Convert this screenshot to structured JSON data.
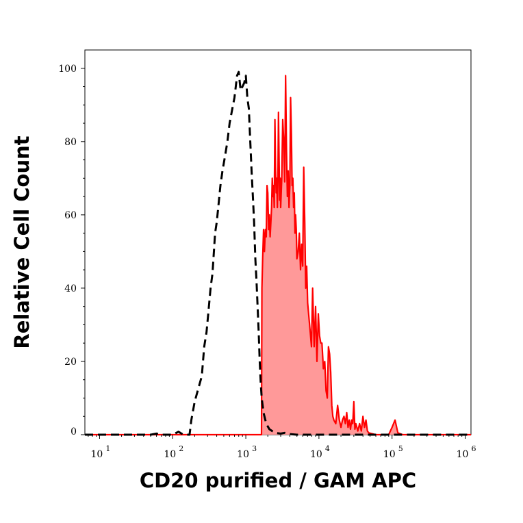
{
  "chart_data": {
    "type": "area",
    "xlabel": "CD20 purified / GAM APC",
    "ylabel": "Relative Cell Count",
    "x_scale": "log",
    "xlim": [
      6.3,
      1200000
    ],
    "ylim": [
      0,
      105
    ],
    "x_ticks": [
      {
        "value": 10,
        "base": "10",
        "exp": "1"
      },
      {
        "value": 100,
        "base": "10",
        "exp": "2"
      },
      {
        "value": 1000,
        "base": "10",
        "exp": "3"
      },
      {
        "value": 10000,
        "base": "10",
        "exp": "4"
      },
      {
        "value": 100000,
        "base": "10",
        "exp": "5"
      },
      {
        "value": 1000000,
        "base": "10",
        "exp": "6"
      }
    ],
    "y_ticks": [
      0,
      20,
      40,
      60,
      80,
      100
    ],
    "grid": false,
    "legend": "none",
    "series": [
      {
        "style": "dashed-line",
        "color": "#000000",
        "points": [
          [
            6.3,
            0
          ],
          [
            50,
            0
          ],
          [
            60,
            0.3
          ],
          [
            70,
            0
          ],
          [
            100,
            0
          ],
          [
            120,
            0.8
          ],
          [
            140,
            0
          ],
          [
            170,
            0
          ],
          [
            180,
            4
          ],
          [
            200,
            9
          ],
          [
            220,
            12
          ],
          [
            250,
            16
          ],
          [
            270,
            24
          ],
          [
            290,
            28
          ],
          [
            310,
            34
          ],
          [
            330,
            40
          ],
          [
            350,
            44
          ],
          [
            380,
            55
          ],
          [
            400,
            58
          ],
          [
            420,
            62
          ],
          [
            450,
            68
          ],
          [
            480,
            72
          ],
          [
            520,
            76
          ],
          [
            560,
            80
          ],
          [
            600,
            85
          ],
          [
            640,
            88
          ],
          [
            700,
            92
          ],
          [
            760,
            98
          ],
          [
            800,
            99
          ],
          [
            850,
            94
          ],
          [
            900,
            95
          ],
          [
            950,
            96
          ],
          [
            1000,
            98
          ],
          [
            1050,
            92
          ],
          [
            1100,
            89
          ],
          [
            1150,
            80
          ],
          [
            1200,
            72
          ],
          [
            1250,
            65
          ],
          [
            1300,
            58
          ],
          [
            1350,
            48
          ],
          [
            1400,
            42
          ],
          [
            1450,
            35
          ],
          [
            1500,
            28
          ],
          [
            1550,
            20
          ],
          [
            1600,
            14
          ],
          [
            1650,
            10
          ],
          [
            1750,
            6
          ],
          [
            1900,
            3
          ],
          [
            2100,
            1.5
          ],
          [
            2500,
            0.5
          ],
          [
            3000,
            0.3
          ],
          [
            3400,
            0.5
          ],
          [
            3800,
            0.2
          ],
          [
            5000,
            0
          ],
          [
            1200000,
            0
          ]
        ]
      },
      {
        "style": "filled-area",
        "color": "#ff0000",
        "fill": "#ff9999",
        "points": [
          [
            6.3,
            0
          ],
          [
            1640,
            0
          ],
          [
            1660,
            40
          ],
          [
            1700,
            48
          ],
          [
            1750,
            56
          ],
          [
            1800,
            50
          ],
          [
            1850,
            56
          ],
          [
            1900,
            54
          ],
          [
            1950,
            68
          ],
          [
            2000,
            66
          ],
          [
            2050,
            56
          ],
          [
            2100,
            60
          ],
          [
            2150,
            54
          ],
          [
            2200,
            58
          ],
          [
            2250,
            62
          ],
          [
            2300,
            70
          ],
          [
            2350,
            65
          ],
          [
            2400,
            68
          ],
          [
            2450,
            62
          ],
          [
            2500,
            86
          ],
          [
            2550,
            73
          ],
          [
            2600,
            66
          ],
          [
            2650,
            70
          ],
          [
            2700,
            62
          ],
          [
            2750,
            70
          ],
          [
            2800,
            88
          ],
          [
            2850,
            75
          ],
          [
            2900,
            64
          ],
          [
            2950,
            70
          ],
          [
            3000,
            62
          ],
          [
            3100,
            70
          ],
          [
            3200,
            86
          ],
          [
            3300,
            80
          ],
          [
            3400,
            69
          ],
          [
            3500,
            98
          ],
          [
            3600,
            78
          ],
          [
            3700,
            65
          ],
          [
            3800,
            72
          ],
          [
            3900,
            62
          ],
          [
            4000,
            68
          ],
          [
            4100,
            92
          ],
          [
            4200,
            82
          ],
          [
            4300,
            68
          ],
          [
            4400,
            70
          ],
          [
            4500,
            62
          ],
          [
            4600,
            66
          ],
          [
            4700,
            55
          ],
          [
            4800,
            60
          ],
          [
            4900,
            56
          ],
          [
            5000,
            48
          ],
          [
            5200,
            50
          ],
          [
            5400,
            55
          ],
          [
            5600,
            45
          ],
          [
            5800,
            52
          ],
          [
            6000,
            46
          ],
          [
            6200,
            73
          ],
          [
            6400,
            58
          ],
          [
            6600,
            40
          ],
          [
            6800,
            46
          ],
          [
            7000,
            36
          ],
          [
            7300,
            32
          ],
          [
            7600,
            28
          ],
          [
            7900,
            24
          ],
          [
            8200,
            40
          ],
          [
            8600,
            24
          ],
          [
            9000,
            35
          ],
          [
            9400,
            20
          ],
          [
            9800,
            33
          ],
          [
            10200,
            27
          ],
          [
            10600,
            25
          ],
          [
            11000,
            25
          ],
          [
            11500,
            18
          ],
          [
            12000,
            20
          ],
          [
            12500,
            12
          ],
          [
            13000,
            10
          ],
          [
            13500,
            24
          ],
          [
            14000,
            22
          ],
          [
            14500,
            17
          ],
          [
            15000,
            8
          ],
          [
            15500,
            5
          ],
          [
            16000,
            4
          ],
          [
            17000,
            3
          ],
          [
            18000,
            8
          ],
          [
            19000,
            4
          ],
          [
            20000,
            2
          ],
          [
            21000,
            4
          ],
          [
            22000,
            5
          ],
          [
            23000,
            3
          ],
          [
            24000,
            6
          ],
          [
            25000,
            2
          ],
          [
            26000,
            4
          ],
          [
            27000,
            1.5
          ],
          [
            28000,
            4
          ],
          [
            29000,
            3
          ],
          [
            30000,
            9
          ],
          [
            31000,
            1.5
          ],
          [
            32000,
            3
          ],
          [
            34000,
            1
          ],
          [
            36000,
            3
          ],
          [
            38000,
            1
          ],
          [
            40000,
            5
          ],
          [
            42000,
            2
          ],
          [
            44000,
            4
          ],
          [
            46000,
            1
          ],
          [
            48000,
            0.5
          ],
          [
            60000,
            0
          ],
          [
            90000,
            0
          ],
          [
            100000,
            2
          ],
          [
            110000,
            4
          ],
          [
            120000,
            0.5
          ],
          [
            140000,
            0
          ],
          [
            1200000,
            0
          ]
        ]
      }
    ]
  }
}
